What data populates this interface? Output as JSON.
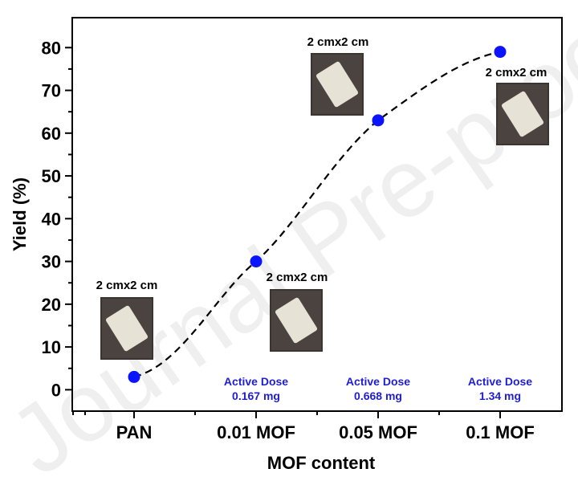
{
  "chart_data": {
    "type": "scatter",
    "title": "",
    "xlabel": "MOF content",
    "ylabel": "Yield (%)",
    "categories": [
      "PAN",
      "0.01 MOF",
      "0.05 MOF",
      "0.1 MOF"
    ],
    "ylim": [
      -5,
      87
    ],
    "yticks": [
      0,
      10,
      20,
      30,
      40,
      50,
      60,
      70,
      80
    ],
    "series": [
      {
        "values": [
          3,
          30,
          63,
          79
        ],
        "color": "#0a14ff",
        "trend_line": "dashed-sigmoid"
      }
    ],
    "grid": false,
    "legend": "none",
    "annotations": {
      "sample_labels": [
        "2 cmx2 cm",
        "2 cmx2 cm",
        "2 cmx2 cm",
        "2 cmx2 cm"
      ],
      "doses": [
        {
          "line1": "Active Dose",
          "line2": "0.167 mg"
        },
        {
          "line1": "Active Dose",
          "line2": "0.668 mg"
        },
        {
          "line1": "Active Dose",
          "line2": "1.34 mg"
        }
      ]
    }
  },
  "watermark": "Journal Pre-proof"
}
